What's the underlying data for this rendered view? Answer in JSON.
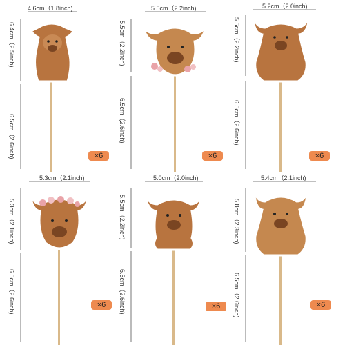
{
  "toppers": [
    {
      "width_label": "4.6cm（1.8inch)",
      "head_label": "6.4cm（2.5inch)",
      "stick_label": "6.5cm（2.6inch)",
      "qty": "×6",
      "icon": "highland-cow-calf-standing",
      "flowers": false
    },
    {
      "width_label": "5.5cm（2.2inch)",
      "head_label": "5.5cm（2.2inch)",
      "stick_label": "6.5cm（2.6inch)",
      "qty": "×6",
      "icon": "highland-cow-head-with-flowers",
      "flowers": true
    },
    {
      "width_label": "5.2cm（2.0inch)",
      "head_label": "5.5cm（2.2inch)",
      "stick_label": "6.5cm（2.6inch)",
      "qty": "×6",
      "icon": "highland-cow-calf-sitting",
      "flowers": false
    },
    {
      "width_label": "5.3cm（2.1inch)",
      "head_label": "5.3cm（2.1inch)",
      "stick_label": "6.5cm（2.6inch)",
      "qty": "×6",
      "icon": "highland-cow-head-flower-crown",
      "flowers": true
    },
    {
      "width_label": "5.0cm（2.0inch)",
      "head_label": "5.5cm（2.2inch)",
      "stick_label": "6.5cm（2.6inch)",
      "qty": "×6",
      "icon": "highland-cow-calf-standing-front",
      "flowers": false
    },
    {
      "width_label": "5.4cm（2.1inch)",
      "head_label": "5.8cm（2.3inch)",
      "stick_label": "6.5cm（2.6inch)",
      "qty": "×6",
      "icon": "highland-cow-calf-sitting-horns",
      "flowers": false
    }
  ],
  "colors": {
    "fur": "#b8743f",
    "fur_dark": "#7a4522",
    "horn": "#e8e0d0",
    "stick": "#d9b98a",
    "badge": "#ee8a4f",
    "flower": "#e9a3a8"
  }
}
